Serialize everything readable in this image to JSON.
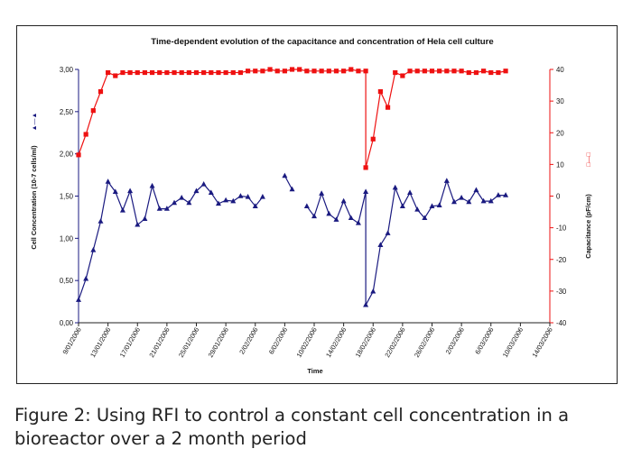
{
  "figure": {
    "caption": "Figure 2: Using RFI to control a constant cell concentration in a bioreactor over a 2 month period"
  },
  "colors": {
    "cell": "#1a1a80",
    "capacitance": "#ee1111",
    "axis": "#222222"
  },
  "chart_data": {
    "type": "line",
    "title": "Time-dependent evolution of the capacitance and concentration of Hela cell culture",
    "xlabel": "Time",
    "ylabel_left": "Cell Concentration (10-7 cells/ml)",
    "ylabel_right": "Capacitance (pF/cm)",
    "left_legend_label": "▲—▲",
    "right_legend_label": "□—□",
    "xlim": [
      "2006-01-09",
      "2006-03-14"
    ],
    "x_ticks": [
      "9/01/2006",
      "13/01/2006",
      "17/01/2006",
      "21/01/2006",
      "25/01/2006",
      "29/01/2006",
      "2/02/2006",
      "6/02/2006",
      "10/02/2006",
      "14/02/2006",
      "18/02/2006",
      "22/02/2006",
      "26/02/2006",
      "2/03/2006",
      "6/03/2006",
      "10/03/2006",
      "14/03/2006"
    ],
    "ylim_left": [
      0,
      3
    ],
    "y_ticks_left": [
      "0,00",
      "0,50",
      "1,00",
      "1,50",
      "2,00",
      "2,50",
      "3,00"
    ],
    "ylim_right": [
      -40,
      40
    ],
    "y_ticks_right": [
      "-40",
      "-30",
      "-20",
      "-10",
      "0",
      "10",
      "20",
      "30",
      "40"
    ],
    "legend": "left and right axis labels",
    "grid": false,
    "series": [
      {
        "axis": "left",
        "marker": "triangle",
        "color": "#1a1a80",
        "points": [
          [
            [
              "2006-01-09",
              "2006-01-10",
              "2006-01-11",
              "2006-01-12",
              "2006-01-13",
              "2006-01-14",
              "2006-01-15",
              "2006-01-16",
              "2006-01-17",
              "2006-01-18",
              "2006-01-19",
              "2006-01-20",
              "2006-01-21",
              "2006-01-22",
              "2006-01-23",
              "2006-01-24",
              "2006-01-25",
              "2006-01-26",
              "2006-01-27",
              "2006-01-28",
              "2006-01-29",
              "2006-01-30",
              "2006-01-31",
              "2006-02-01",
              "2006-02-02",
              "2006-02-03"
            ],
            [
              0.27,
              0.52,
              0.86,
              1.2,
              1.67,
              1.55,
              1.33,
              1.56,
              1.16,
              1.23,
              1.62,
              1.35,
              1.35,
              1.42,
              1.48,
              1.42,
              1.56,
              1.64,
              1.54,
              1.41,
              1.45,
              1.44,
              1.5,
              1.49,
              1.38,
              1.49
            ]
          ],
          [
            [
              "2006-02-06",
              "2006-02-07"
            ],
            [
              1.74,
              1.58
            ]
          ],
          [
            [
              "2006-02-09",
              "2006-02-10",
              "2006-02-11",
              "2006-02-12",
              "2006-02-13",
              "2006-02-14",
              "2006-02-15",
              "2006-02-16",
              "2006-02-17",
              "2006-02-17",
              "2006-02-18",
              "2006-02-19",
              "2006-02-20",
              "2006-02-21",
              "2006-02-22",
              "2006-02-23",
              "2006-02-24",
              "2006-02-25",
              "2006-02-26",
              "2006-02-27",
              "2006-02-28",
              "2006-03-01",
              "2006-03-02",
              "2006-03-03",
              "2006-03-04",
              "2006-03-05",
              "2006-03-06",
              "2006-03-07",
              "2006-03-08"
            ],
            [
              1.38,
              1.26,
              1.53,
              1.29,
              1.22,
              1.44,
              1.24,
              1.18,
              1.55,
              0.21,
              0.37,
              0.92,
              1.06,
              1.6,
              1.38,
              1.54,
              1.34,
              1.24,
              1.38,
              1.39,
              1.68,
              1.43,
              1.48,
              1.43,
              1.57,
              1.44,
              1.44,
              1.51,
              1.51
            ]
          ]
        ]
      },
      {
        "axis": "right",
        "marker": "square",
        "color": "#ee1111",
        "points": [
          [
            [
              "2006-01-09",
              "2006-01-10",
              "2006-01-11",
              "2006-01-12",
              "2006-01-13",
              "2006-01-14",
              "2006-01-15",
              "2006-01-16",
              "2006-01-17",
              "2006-01-18",
              "2006-01-19",
              "2006-01-20",
              "2006-01-21",
              "2006-01-22",
              "2006-01-23",
              "2006-01-24",
              "2006-01-25",
              "2006-01-26",
              "2006-01-27",
              "2006-01-28",
              "2006-01-29",
              "2006-01-30",
              "2006-01-31",
              "2006-02-01",
              "2006-02-02",
              "2006-02-03",
              "2006-02-04",
              "2006-02-05",
              "2006-02-06",
              "2006-02-07",
              "2006-02-08",
              "2006-02-09",
              "2006-02-10",
              "2006-02-11",
              "2006-02-12",
              "2006-02-13",
              "2006-02-14",
              "2006-02-15",
              "2006-02-16",
              "2006-02-17",
              "2006-02-17",
              "2006-02-18",
              "2006-02-19",
              "2006-02-20",
              "2006-02-21",
              "2006-02-22",
              "2006-02-23",
              "2006-02-24",
              "2006-02-25",
              "2006-02-26",
              "2006-02-27",
              "2006-02-28",
              "2006-03-01",
              "2006-03-02",
              "2006-03-03",
              "2006-03-04",
              "2006-03-05",
              "2006-03-06",
              "2006-03-07",
              "2006-03-08"
            ],
            [
              13,
              19.5,
              27,
              33,
              39,
              38,
              39,
              39,
              39,
              39,
              39,
              39,
              39,
              39,
              39,
              39,
              39,
              39,
              39,
              39,
              39,
              39,
              39,
              39.5,
              39.5,
              39.5,
              40,
              39.5,
              39.5,
              40,
              40,
              39.5,
              39.5,
              39.5,
              39.5,
              39.5,
              39.5,
              40,
              39.5,
              39.5,
              9,
              18,
              33,
              28,
              39,
              38,
              39.5,
              39.5,
              39.5,
              39.5,
              39.5,
              39.5,
              39.5,
              39.5,
              39,
              39,
              39.5,
              39,
              39,
              39.5
            ]
          ]
        ]
      }
    ]
  }
}
